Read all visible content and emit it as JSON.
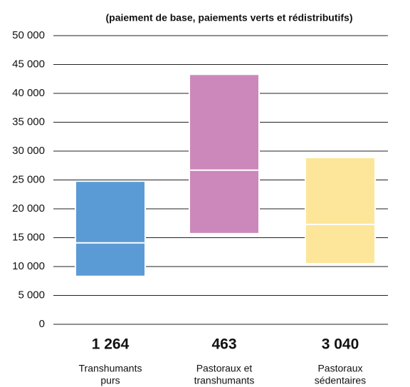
{
  "chart_data": {
    "type": "box",
    "title": "(paiement de base, paiements verts et rédistributifs)",
    "categories": [
      [
        "Transhumants",
        "purs"
      ],
      [
        "Pastoraux et",
        "transhumants"
      ],
      [
        "Pastoraux",
        "sédentaires"
      ]
    ],
    "counts": [
      "1 264",
      "463",
      "3 040"
    ],
    "low": [
      8300,
      15700,
      10500
    ],
    "median": [
      14100,
      26700,
      17300
    ],
    "high": [
      24800,
      43300,
      28900
    ],
    "colors": [
      "#5b9bd5",
      "#cc88bb",
      "#fde699"
    ],
    "ylim": [
      0,
      50000
    ],
    "yticks": [
      0,
      {
        "value": 5000,
        "label": "5 000"
      },
      {
        "value": 10000,
        "label": "10 000"
      },
      {
        "value": 15000,
        "label": "15 000"
      },
      {
        "value": 20000,
        "label": "20 000"
      },
      {
        "value": 25000,
        "label": "25 000"
      },
      {
        "value": 30000,
        "label": "30 000"
      },
      {
        "value": 35000,
        "label": "35 000"
      },
      {
        "value": 40000,
        "label": "40 000"
      },
      {
        "value": 45000,
        "label": "45 000"
      },
      {
        "value": 50000,
        "label": "50 000"
      }
    ],
    "grid": true
  }
}
